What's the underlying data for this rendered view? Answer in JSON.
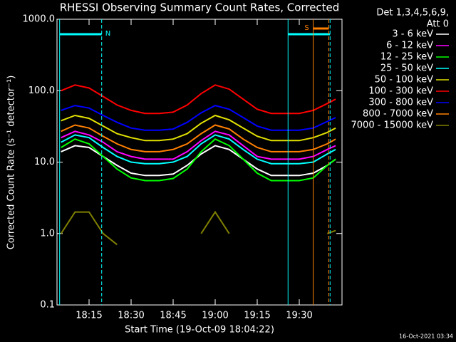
{
  "chart_data": {
    "type": "line",
    "title": "RHESSI Observing Summary Count Rates, Corrected",
    "xlabel": "Start Time (19-Oct-09 18:04:22)",
    "ylabel": "Corrected Count Rate (s⁻¹ detector⁻¹)",
    "legend_title": [
      "Det 1,3,4,5,6,9,",
      "Att 0"
    ],
    "footer": "16-Oct-2021 03:34",
    "log_y": true,
    "xlim": [
      3.56,
      105.25
    ],
    "xticks": [
      {
        "value": 15,
        "label": "18:15"
      },
      {
        "value": 30,
        "label": "18:30"
      },
      {
        "value": 45,
        "label": "18:45"
      },
      {
        "value": 60,
        "label": "19:00"
      },
      {
        "value": 75,
        "label": "19:15"
      },
      {
        "value": 90,
        "label": "19:30"
      }
    ],
    "ylim": [
      0.1,
      1000
    ],
    "yticks": [
      {
        "value": 1000,
        "label": "1000.0"
      },
      {
        "value": 100,
        "label": "100.0"
      },
      {
        "value": 10,
        "label": "10.0"
      },
      {
        "value": 1,
        "label": "1.0"
      },
      {
        "value": 0.1,
        "label": "0.1"
      }
    ],
    "x": [
      5,
      10,
      15,
      20,
      25,
      30,
      35,
      40,
      45,
      50,
      55,
      60,
      65,
      70,
      75,
      80,
      85,
      90,
      95,
      100,
      103
    ],
    "series": [
      {
        "name": "3 - 6 keV",
        "color": "#ffffff",
        "values": [
          14,
          17,
          16,
          12,
          9,
          7,
          6.5,
          6.5,
          6.8,
          9,
          13,
          17,
          15,
          11,
          8,
          6.5,
          6.5,
          6.5,
          7,
          9,
          11
        ]
      },
      {
        "name": "6 - 12 keV",
        "color": "#ff00ff",
        "values": [
          22,
          27,
          24,
          19,
          14,
          12,
          11,
          11,
          11,
          14,
          20,
          27,
          24,
          17,
          12,
          11,
          11,
          11,
          12,
          15,
          17
        ]
      },
      {
        "name": "12 - 25 keV",
        "color": "#00ff00",
        "values": [
          16,
          21,
          18,
          12,
          8,
          6,
          5.5,
          5.5,
          5.9,
          8,
          14,
          21,
          17,
          11,
          7,
          5.5,
          5.5,
          5.5,
          6,
          9,
          11
        ]
      },
      {
        "name": "25 - 50 keV",
        "color": "#00ffff",
        "values": [
          19,
          24,
          22,
          16,
          12,
          10,
          9.5,
          9.5,
          10,
          12,
          18,
          24,
          21,
          15,
          11,
          9.5,
          9.5,
          9.5,
          10,
          13,
          15
        ]
      },
      {
        "name": "50 - 100 keV",
        "color": "#e0e000",
        "values": [
          38,
          45,
          41,
          32,
          25,
          22,
          20,
          20,
          21,
          25,
          35,
          45,
          39,
          30,
          23,
          20,
          20,
          20,
          22,
          26,
          30
        ]
      },
      {
        "name": "100 - 300 keV",
        "color": "#ff0000",
        "values": [
          100,
          120,
          109,
          83,
          63,
          53,
          48,
          48,
          50,
          63,
          91,
          120,
          105,
          76,
          55,
          48,
          48,
          48,
          53,
          66,
          76
        ]
      },
      {
        "name": "300 - 800 keV",
        "color": "#0000ff",
        "values": [
          53,
          62,
          57,
          45,
          36,
          30,
          28,
          28,
          29,
          36,
          49,
          62,
          55,
          42,
          32,
          28,
          28,
          28,
          30,
          37,
          42
        ]
      },
      {
        "name": "800 - 7000 keV",
        "color": "#ff8000",
        "values": [
          27,
          33,
          30,
          23,
          18,
          15,
          14,
          14,
          15,
          18,
          25,
          33,
          29,
          21,
          16,
          14,
          14,
          14,
          15,
          18,
          21
        ]
      },
      {
        "name": "7000 - 15000 keV",
        "color": "#808000",
        "values": [
          1.0,
          2.0,
          2.0,
          1.0,
          0.7,
          null,
          null,
          null,
          null,
          null,
          1.0,
          2.0,
          1.0,
          null,
          null,
          null,
          null,
          null,
          null,
          1.0,
          1.1
        ]
      }
    ],
    "intervals": [
      {
        "label": "N",
        "start": 4.5,
        "end": 19.5,
        "color": "#00ffff"
      },
      {
        "start": 86,
        "end": 101,
        "color": "#00ffff"
      },
      {
        "label": "S",
        "start": 95,
        "end": 100.5,
        "color": "#ff8000"
      }
    ]
  }
}
